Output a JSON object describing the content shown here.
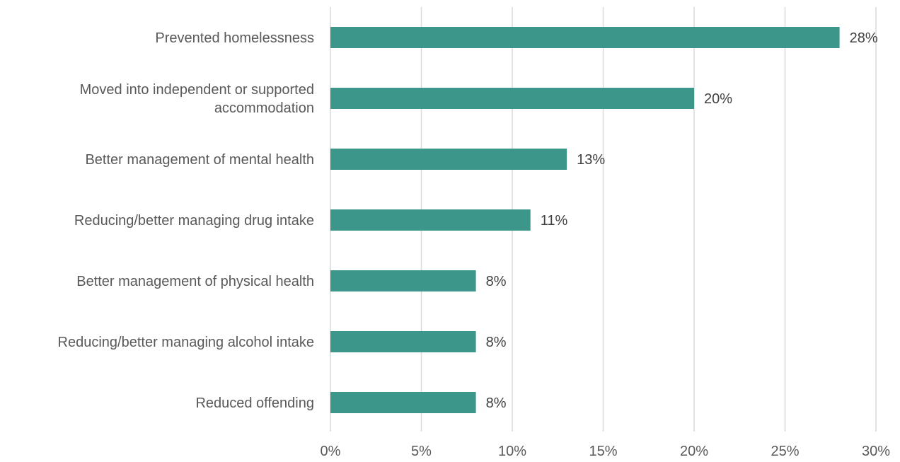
{
  "chart_data": {
    "type": "bar",
    "orientation": "horizontal",
    "categories": [
      [
        "Prevented homelessness"
      ],
      [
        "Moved into independent or supported",
        "accommodation"
      ],
      [
        "Better management of mental health"
      ],
      [
        "Reducing/better managing drug intake"
      ],
      [
        "Better management of physical health"
      ],
      [
        "Reducing/better managing alcohol intake"
      ],
      [
        "Reduced offending"
      ]
    ],
    "values": [
      28,
      20,
      13,
      11,
      8,
      8,
      8
    ],
    "data_labels": [
      "28%",
      "20%",
      "13%",
      "11%",
      "8%",
      "8%",
      "8%"
    ],
    "x_ticks": [
      0,
      5,
      10,
      15,
      20,
      25,
      30
    ],
    "x_tick_labels": [
      "0%",
      "5%",
      "10%",
      "15%",
      "20%",
      "25%",
      "30%"
    ],
    "xlim": [
      0,
      30
    ],
    "grid": "vertical",
    "legend": "none",
    "bar_color": "#3d968a"
  }
}
